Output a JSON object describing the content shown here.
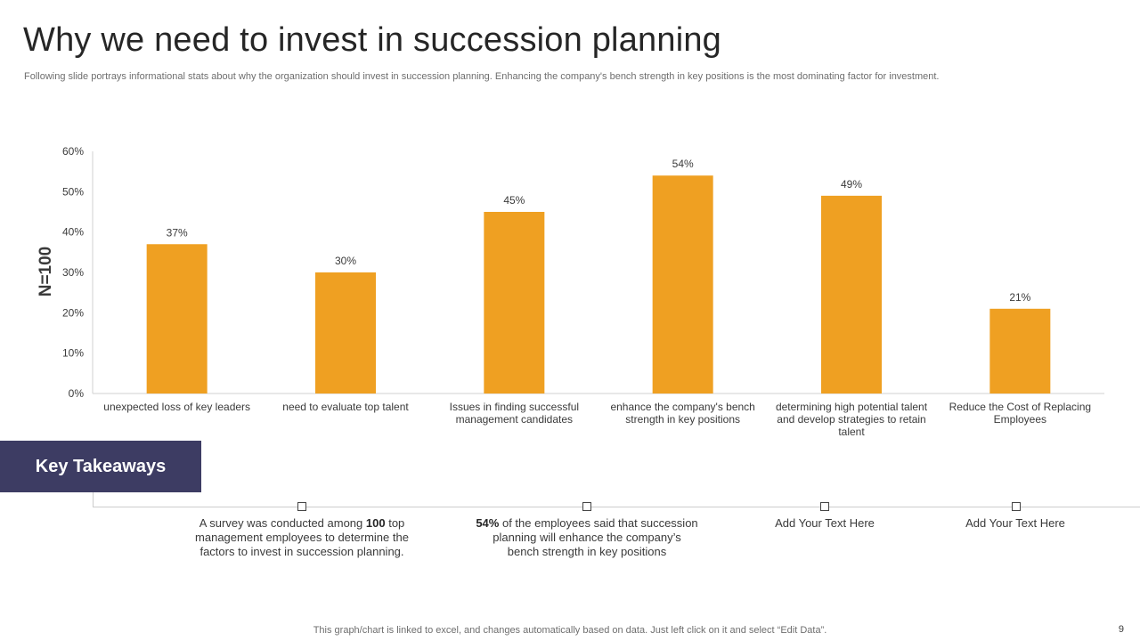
{
  "slide": {
    "title": "Why we need to invest in succession planning",
    "subtitle": "Following slide portrays informational stats about why the organization should invest in succession planning. Enhancing the company's bench strength in key positions is the most dominating factor for investment.",
    "footer": "This graph/chart is linked to excel,  and changes automatically based on data. Just left click on it and select “Edit Data”.",
    "page_number": "9"
  },
  "chart_data": {
    "type": "bar",
    "title": "",
    "xlabel": "",
    "ylabel": "N=100",
    "ylim": [
      0,
      60
    ],
    "yticks": [
      "0%",
      "10%",
      "20%",
      "30%",
      "40%",
      "50%",
      "60%"
    ],
    "categories": [
      "unexpected loss of key leaders",
      "need to evaluate top talent",
      "Issues in finding successful management candidates",
      "enhance the company's bench strength in key positions",
      "determining high potential talent and develop strategies to retain talent",
      "Reduce the Cost of Replacing Employees"
    ],
    "values": [
      37,
      30,
      45,
      54,
      49,
      21
    ],
    "data_labels": [
      "37%",
      "30%",
      "45%",
      "54%",
      "49%",
      "21%"
    ],
    "bar_color": "#efa022",
    "grid": false
  },
  "key_takeaways": {
    "heading": "Key Takeaways",
    "box_color": "#3d3c63",
    "items": [
      {
        "pre": "A survey was conducted among ",
        "bold": "100",
        "post": " top management employees to determine the factors to invest in succession planning."
      },
      {
        "pre": "",
        "bold": "54%",
        "post": " of the employees said that succession planning will enhance the company’s bench strength in key positions"
      },
      {
        "pre": "Add Your Text Here",
        "bold": "",
        "post": ""
      },
      {
        "pre": "Add Your Text Here",
        "bold": "",
        "post": ""
      }
    ]
  }
}
